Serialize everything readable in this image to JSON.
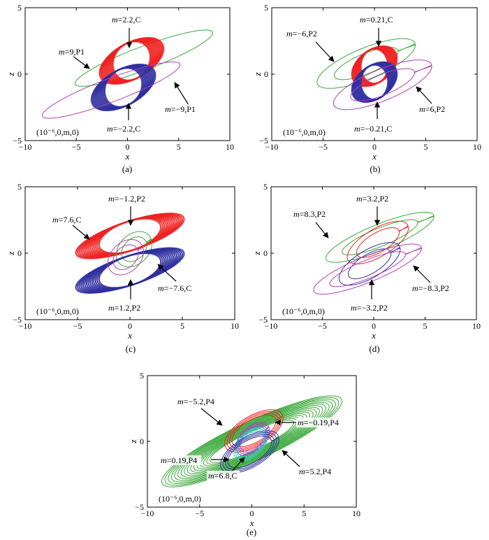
{
  "chart_data": [
    {
      "panel": "(a)",
      "type": "line",
      "xlabel": "x",
      "ylabel": "z",
      "xlim": [
        -10,
        10
      ],
      "ylim": [
        -5,
        5
      ],
      "xticks": [
        -10,
        -5,
        0,
        5,
        10
      ],
      "yticks": [
        -5,
        0,
        5
      ],
      "initial_condition": "(10⁻⁶,0,m,0)",
      "series": [
        {
          "m": 9,
          "type": "P1",
          "color": "#39a839",
          "label": "m=9,P1"
        },
        {
          "m": 2.2,
          "type": "C",
          "color": "#ee2222",
          "label": "m=2.2,C"
        },
        {
          "m": -2.2,
          "type": "C",
          "color": "#3030a0",
          "label": "m=−2.2,C"
        },
        {
          "m": -9,
          "type": "P1",
          "color": "#b040b8",
          "label": "m=−9,P1"
        }
      ]
    },
    {
      "panel": "(b)",
      "type": "line",
      "xlabel": "x",
      "ylabel": "z",
      "xlim": [
        -10,
        10
      ],
      "ylim": [
        -5,
        5
      ],
      "xticks": [
        -10,
        -5,
        0,
        5,
        10
      ],
      "yticks": [
        -5,
        0,
        5
      ],
      "initial_condition": "(10⁻⁶,0,m,0)",
      "series": [
        {
          "m": -6,
          "type": "P2",
          "color": "#39a839",
          "label": "m=−6,P2"
        },
        {
          "m": 0.21,
          "type": "C",
          "color": "#ee2222",
          "label": "m=0.21,C"
        },
        {
          "m": -0.21,
          "type": "C",
          "color": "#3030a0",
          "label": "m=−0.21,C"
        },
        {
          "m": 6,
          "type": "P2",
          "color": "#b040b8",
          "label": "m=6,P2"
        }
      ]
    },
    {
      "panel": "(c)",
      "type": "line",
      "xlabel": "x",
      "ylabel": "z",
      "xlim": [
        -10,
        10
      ],
      "ylim": [
        -5,
        5
      ],
      "xticks": [
        -10,
        -5,
        0,
        5,
        10
      ],
      "yticks": [
        -5,
        0,
        5
      ],
      "initial_condition": "(10⁻⁶,0,m,0)",
      "series": [
        {
          "m": 7.6,
          "type": "C",
          "color": "#ee2222",
          "label": "m=7.6,C"
        },
        {
          "m": -1.2,
          "type": "P2",
          "color": "#39a839",
          "label": "m=−1.2,P2"
        },
        {
          "m": -7.6,
          "type": "C",
          "color": "#3030a0",
          "label": "m=−7.6,C"
        },
        {
          "m": 1.2,
          "type": "P2",
          "color": "#b040b8",
          "label": "m=1.2,P2"
        }
      ]
    },
    {
      "panel": "(d)",
      "type": "line",
      "xlabel": "x",
      "ylabel": "z",
      "xlim": [
        -10,
        10
      ],
      "ylim": [
        -5,
        5
      ],
      "xticks": [
        -10,
        -5,
        0,
        5,
        10
      ],
      "yticks": [
        -5,
        0,
        5
      ],
      "initial_condition": "(10⁻⁶,0,m,0)",
      "series": [
        {
          "m": 8.3,
          "type": "P2",
          "color": "#39a839",
          "label": "m=8.3,P2"
        },
        {
          "m": 3.2,
          "type": "P2",
          "color": "#ee2222",
          "label": "m=3.2,P2"
        },
        {
          "m": -3.2,
          "type": "P2",
          "color": "#3030a0",
          "label": "m=−3.2,P2"
        },
        {
          "m": -8.3,
          "type": "P2",
          "color": "#b040b8",
          "label": "m=−8.3,P2"
        }
      ]
    },
    {
      "panel": "(e)",
      "type": "line",
      "xlabel": "x",
      "ylabel": "z",
      "xlim": [
        -10,
        10
      ],
      "ylim": [
        -5,
        5
      ],
      "xticks": [
        -10,
        -5,
        0,
        5,
        10
      ],
      "yticks": [
        -5,
        0,
        5
      ],
      "initial_condition": "(10⁻⁶,0,m,0)",
      "series": [
        {
          "m": 6.8,
          "type": "C",
          "color": "#39a839",
          "label": "m=6.8,C"
        },
        {
          "m": -5.2,
          "type": "P4",
          "color": "#ee2222",
          "label": "m=−5.2,P4"
        },
        {
          "m": -0.19,
          "type": "P4",
          "color": "#a050c0",
          "label": "m=−0.19,P4"
        },
        {
          "m": 0.19,
          "type": "P4",
          "color": "#40c8c8",
          "label": "m=0.19,P4"
        },
        {
          "m": 5.2,
          "type": "P4",
          "color": "#3030a0",
          "label": "m=5.2,P4"
        }
      ]
    }
  ]
}
